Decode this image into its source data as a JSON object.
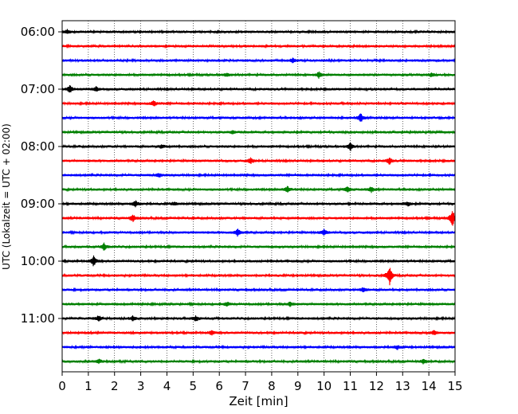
{
  "chart_data": {
    "type": "line",
    "title": "",
    "xlabel": "Zeit  [min]",
    "ylabel": "UTC (Lokalzeit = UTC + 02:00)",
    "xlim": [
      0,
      15
    ],
    "x_ticks": [
      0,
      1,
      2,
      3,
      4,
      5,
      6,
      7,
      8,
      9,
      10,
      11,
      12,
      13,
      14,
      15
    ],
    "y_tick_labels": [
      "06:00",
      "07:00",
      "08:00",
      "09:00",
      "10:00",
      "11:00"
    ],
    "trace_interval_minutes": 15,
    "grid": "vertical dotted lines at each minute",
    "trace_colors": [
      "#000000",
      "#ff0000",
      "#0000ff",
      "#008000"
    ],
    "series": [
      {
        "start": "06:00",
        "events": [
          [
            0.2,
            1.0
          ]
        ]
      },
      {
        "start": "06:15",
        "events": []
      },
      {
        "start": "06:30",
        "events": [
          [
            8.8,
            1.2
          ]
        ]
      },
      {
        "start": "06:45",
        "events": [
          [
            6.3,
            1.0
          ],
          [
            9.8,
            1.6
          ],
          [
            14.1,
            1.0
          ]
        ]
      },
      {
        "start": "07:00",
        "events": [
          [
            0.3,
            2.0
          ],
          [
            1.3,
            1.2
          ]
        ]
      },
      {
        "start": "07:15",
        "events": [
          [
            3.5,
            1.5
          ]
        ]
      },
      {
        "start": "07:30",
        "events": [
          [
            11.4,
            2.5
          ]
        ]
      },
      {
        "start": "07:45",
        "events": [
          [
            6.5,
            1.0
          ]
        ]
      },
      {
        "start": "08:00",
        "events": [
          [
            3.8,
            1.0
          ],
          [
            11.0,
            2.4
          ]
        ]
      },
      {
        "start": "08:15",
        "events": [
          [
            7.2,
            1.5
          ],
          [
            12.5,
            1.8
          ]
        ]
      },
      {
        "start": "08:30",
        "events": [
          [
            3.7,
            1.0
          ]
        ]
      },
      {
        "start": "08:45",
        "events": [
          [
            8.6,
            1.7
          ],
          [
            10.9,
            1.6
          ],
          [
            11.8,
            1.5
          ]
        ]
      },
      {
        "start": "09:00",
        "events": [
          [
            2.8,
            1.8
          ],
          [
            4.3,
            1.0
          ],
          [
            13.2,
            1.0
          ]
        ]
      },
      {
        "start": "09:15",
        "events": [
          [
            2.7,
            2.0
          ],
          [
            14.9,
            5.0
          ]
        ]
      },
      {
        "start": "09:30",
        "events": [
          [
            6.7,
            1.8
          ],
          [
            10.0,
            1.6
          ]
        ]
      },
      {
        "start": "09:45",
        "events": [
          [
            1.6,
            2.0
          ]
        ]
      },
      {
        "start": "10:00",
        "events": [
          [
            1.2,
            2.8
          ]
        ]
      },
      {
        "start": "10:15",
        "events": [
          [
            12.5,
            5.5
          ]
        ]
      },
      {
        "start": "10:30",
        "events": [
          [
            11.5,
            1.4
          ]
        ]
      },
      {
        "start": "10:45",
        "events": [
          [
            6.3,
            1.0
          ],
          [
            8.7,
            1.1
          ]
        ]
      },
      {
        "start": "11:00",
        "events": [
          [
            1.4,
            1.5
          ],
          [
            2.7,
            1.3
          ],
          [
            5.1,
            1.4
          ]
        ]
      },
      {
        "start": "11:15",
        "events": [
          [
            5.7,
            1.2
          ],
          [
            14.2,
            1.2
          ]
        ]
      },
      {
        "start": "11:30",
        "events": [
          [
            12.8,
            1.0
          ]
        ]
      },
      {
        "start": "11:45",
        "events": [
          [
            1.4,
            1.1
          ],
          [
            13.8,
            1.3
          ]
        ]
      }
    ]
  }
}
